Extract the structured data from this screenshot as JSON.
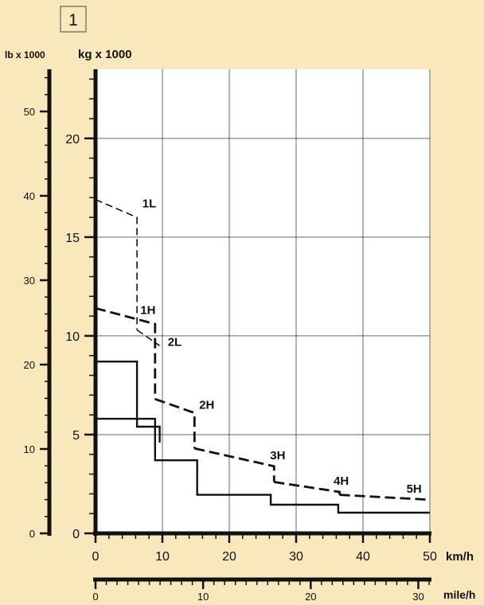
{
  "figure_number": "1",
  "colors": {
    "background": "#f8e8bb",
    "plot_bg": "#ffffff",
    "ink": "#111111",
    "grid": "#666666"
  },
  "chart_data": {
    "type": "line",
    "y_left_label": "lb x 1000",
    "y_main_label": "kg x 1000",
    "x_main_unit": "km/h",
    "x_secondary_unit": "mile/h",
    "xlim": [
      0,
      50
    ],
    "ylim_kg": [
      0,
      23.5
    ],
    "ylim_lb": [
      0,
      55
    ],
    "x_ticks": [
      "0",
      "10",
      "20",
      "30",
      "40",
      "50"
    ],
    "y_kg_ticks": [
      "0",
      "5",
      "10",
      "15",
      "20"
    ],
    "y_lb_ticks": [
      "0",
      "10",
      "20",
      "30",
      "40",
      "50"
    ],
    "x_mile_ticks": [
      "0",
      "10",
      "20",
      "30"
    ],
    "grid": true,
    "series": [
      {
        "name": "1L",
        "style": "dashed",
        "x": [
          0,
          6.2,
          6.2
        ],
        "y": [
          16.9,
          16.0,
          10.3
        ]
      },
      {
        "name": "2L",
        "style": "dashed",
        "x": [
          6.2,
          9.6
        ],
        "y": [
          10.3,
          9.5
        ]
      },
      {
        "name": "1H",
        "style": "thick-dashed",
        "x": [
          0,
          8.9,
          8.9
        ],
        "y": [
          11.4,
          10.6,
          6.8
        ]
      },
      {
        "name": "2H",
        "style": "thick-dashed",
        "x": [
          8.9,
          14.8,
          14.8
        ],
        "y": [
          6.8,
          6.1,
          4.3
        ]
      },
      {
        "name": "3H",
        "style": "thick-dashed",
        "x": [
          14.8,
          26.7,
          26.7
        ],
        "y": [
          4.3,
          3.4,
          2.6
        ]
      },
      {
        "name": "4H",
        "style": "thick-dashed",
        "x": [
          26.7,
          36.5,
          36.5
        ],
        "y": [
          2.6,
          2.1,
          1.95
        ]
      },
      {
        "name": "5H",
        "style": "thick-dashed",
        "x": [
          36.5,
          50
        ],
        "y": [
          1.95,
          1.7
        ]
      },
      {
        "name": "",
        "style": "solid",
        "x": [
          0,
          6.2,
          6.2,
          9.6,
          9.6
        ],
        "y": [
          8.7,
          8.7,
          5.4,
          5.4,
          4.6
        ]
      },
      {
        "name": "",
        "style": "solid",
        "x": [
          0,
          8.9,
          8.9,
          15.2,
          15.2,
          26.2,
          26.2,
          36.3,
          36.3,
          50
        ],
        "y": [
          5.8,
          5.8,
          3.7,
          3.7,
          1.95,
          1.95,
          1.45,
          1.45,
          1.05,
          1.05
        ]
      }
    ],
    "annotations": [
      {
        "text": "1L",
        "x": 7.0,
        "y": 16.5
      },
      {
        "text": "1H",
        "x": 6.7,
        "y": 11.1
      },
      {
        "text": "2L",
        "x": 10.8,
        "y": 9.5
      },
      {
        "text": "2H",
        "x": 15.5,
        "y": 6.3
      },
      {
        "text": "3H",
        "x": 26.1,
        "y": 3.75
      },
      {
        "text": "4H",
        "x": 35.6,
        "y": 2.45
      },
      {
        "text": "5H",
        "x": 46.5,
        "y": 2.05
      }
    ]
  }
}
